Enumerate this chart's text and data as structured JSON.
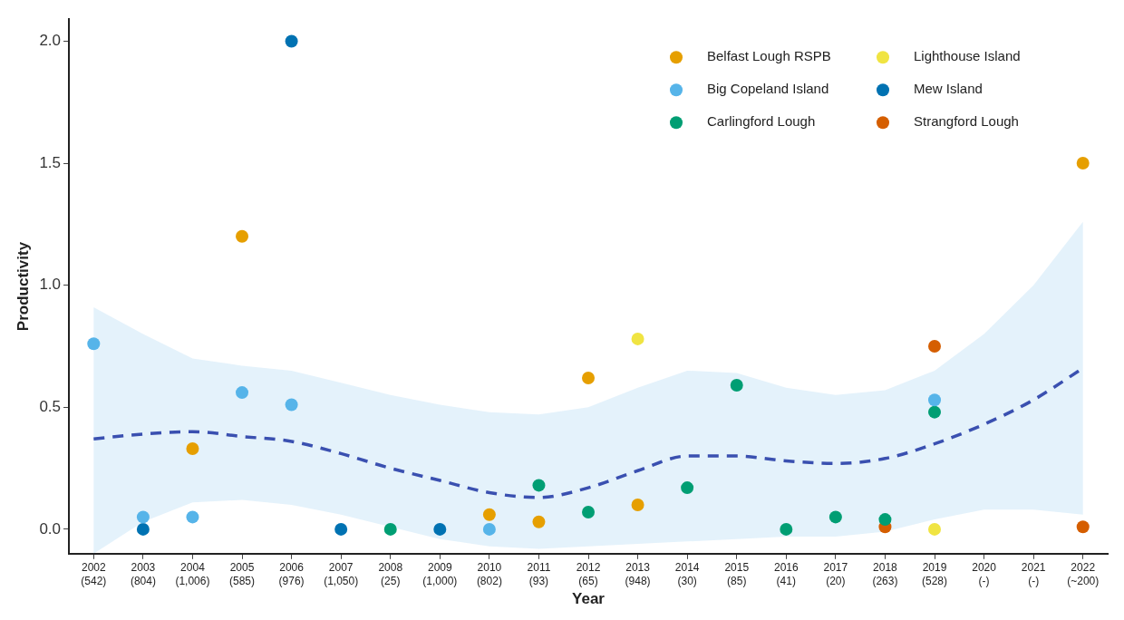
{
  "chart_data": {
    "type": "scatter",
    "xlabel": "Year",
    "ylabel": "Productivity",
    "categories": [
      "2002\n(542)",
      "2003\n(804)",
      "2004\n(1,006)",
      "2005\n(585)",
      "2006\n(976)",
      "2007\n(1,050)",
      "2008\n(25)",
      "2009\n(1,000)",
      "2010\n(802)",
      "2011\n(93)",
      "2012\n(65)",
      "2013\n(948)",
      "2014\n(30)",
      "2015\n(85)",
      "2016\n(41)",
      "2017\n(20)",
      "2018\n(263)",
      "2019\n(528)",
      "2020\n(-)",
      "2021\n(-)",
      "2022\n(~200)"
    ],
    "ylim": [
      -0.1,
      2.09
    ],
    "yticks": [
      {
        "value": 0,
        "label": "0.0"
      },
      {
        "value": 0.5,
        "label": "0.5"
      },
      {
        "value": 1,
        "label": "1.0"
      },
      {
        "value": 1.5,
        "label": "1.5"
      },
      {
        "value": 2,
        "label": "2.0"
      }
    ],
    "legend": "top right",
    "series": [
      {
        "type": "line",
        "color": "#3a50b0",
        "line_style": "dashed",
        "marker": "none",
        "values": [
          0.37,
          0.39,
          0.4,
          0.38,
          0.36,
          0.31,
          0.25,
          0.2,
          0.15,
          0.13,
          0.17,
          0.24,
          0.3,
          0.3,
          0.28,
          0.27,
          0.29,
          0.35,
          0.43,
          0.53,
          0.66
        ],
        "lower": [
          -0.1,
          0.03,
          0.11,
          0.12,
          0.1,
          0.06,
          0.01,
          -0.04,
          -0.07,
          -0.08,
          -0.07,
          -0.06,
          -0.05,
          -0.04,
          -0.03,
          -0.03,
          -0.01,
          0.04,
          0.08,
          0.08,
          0.06
        ],
        "upper": [
          0.91,
          0.8,
          0.7,
          0.67,
          0.65,
          0.6,
          0.55,
          0.51,
          0.48,
          0.47,
          0.5,
          0.58,
          0.65,
          0.64,
          0.58,
          0.55,
          0.57,
          0.65,
          0.8,
          1.0,
          1.26
        ]
      },
      {
        "type": "scatter",
        "name": "Belfast Lough RSPB",
        "color": "#e69f00",
        "marker": "circle",
        "values": [
          null,
          null,
          0.33,
          1.2,
          null,
          null,
          null,
          null,
          0.06,
          0.03,
          0.62,
          0.1,
          null,
          null,
          null,
          null,
          null,
          null,
          null,
          null,
          1.5
        ]
      },
      {
        "type": "scatter",
        "name": "Big Copeland Island",
        "color": "#56b4e9",
        "marker": "circle",
        "values": [
          0.76,
          0.05,
          0.05,
          0.56,
          0.51,
          null,
          null,
          null,
          0.0,
          null,
          null,
          null,
          null,
          null,
          null,
          null,
          null,
          0.53,
          null,
          null,
          null
        ]
      },
      {
        "type": "scatter",
        "name": "Carlingford Lough",
        "color": "#009e73",
        "marker": "circle",
        "values": [
          null,
          null,
          null,
          null,
          null,
          null,
          0.0,
          null,
          null,
          0.18,
          0.07,
          null,
          0.17,
          0.59,
          0.0,
          0.05,
          0.04,
          0.48,
          null,
          null,
          null
        ]
      },
      {
        "type": "scatter",
        "name": "Lighthouse Island",
        "color": "#f0e442",
        "marker": "circle",
        "values": [
          null,
          null,
          null,
          null,
          null,
          null,
          null,
          null,
          null,
          null,
          null,
          0.78,
          null,
          null,
          null,
          null,
          null,
          0.0,
          null,
          null,
          null
        ]
      },
      {
        "type": "scatter",
        "name": "Mew Island",
        "color": "#0072b2",
        "marker": "circle",
        "values": [
          null,
          0.0,
          null,
          null,
          2.0,
          0.0,
          null,
          0.0,
          null,
          null,
          null,
          null,
          null,
          null,
          null,
          null,
          null,
          null,
          null,
          null,
          null
        ]
      },
      {
        "type": "scatter",
        "name": "Strangford Lough",
        "color": "#d55e00",
        "marker": "circle",
        "values": [
          null,
          null,
          null,
          null,
          null,
          null,
          null,
          null,
          null,
          null,
          null,
          null,
          null,
          null,
          null,
          null,
          0.01,
          0.75,
          null,
          null,
          0.01
        ]
      }
    ]
  }
}
